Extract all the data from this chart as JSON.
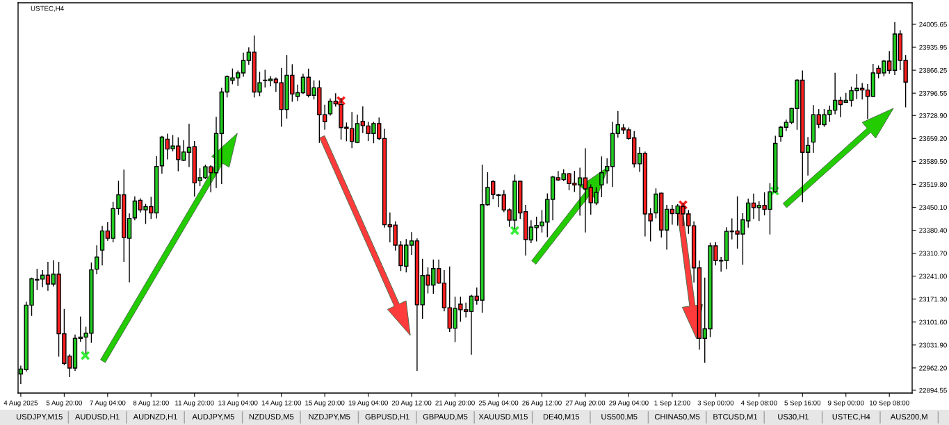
{
  "chart_data": {
    "type": "candlestick",
    "title": "USTEC,H4",
    "categories": [
      "4 Aug 2025",
      null,
      null,
      null,
      null,
      null,
      null,
      null,
      "5 Aug 20:00",
      null,
      null,
      null,
      null,
      null,
      null,
      null,
      "7 Aug 04:00",
      null,
      null,
      null,
      null,
      null,
      null,
      null,
      "8 Aug 12:00",
      null,
      null,
      null,
      null,
      null,
      null,
      null,
      "11 Aug 20:00",
      null,
      null,
      null,
      null,
      null,
      null,
      null,
      "13 Aug 04:00",
      null,
      null,
      null,
      null,
      null,
      null,
      null,
      "14 Aug 12:00",
      null,
      null,
      null,
      null,
      null,
      null,
      null,
      "15 Aug 20:00",
      null,
      null,
      null,
      null,
      null,
      null,
      null,
      "19 Aug 04:00",
      null,
      null,
      null,
      null,
      null,
      null,
      null,
      "20 Aug 12:00",
      null,
      null,
      null,
      null,
      null,
      null,
      null,
      "21 Aug 20:00",
      null,
      null,
      null,
      null,
      null,
      null,
      null,
      "25 Aug 04:00",
      null,
      null,
      null,
      null,
      null,
      null,
      null,
      "26 Aug 12:00",
      null,
      null,
      null,
      null,
      null,
      null,
      null,
      "27 Aug 20:00",
      null,
      null,
      null,
      null,
      null,
      null,
      null,
      "29 Aug 04:00",
      null,
      null,
      null,
      null,
      null,
      null,
      null,
      "1 Sep 12:00",
      null,
      null,
      null,
      null,
      null,
      null,
      null,
      "3 Sep 00:00",
      null,
      null,
      null,
      null,
      null,
      null,
      null,
      "4 Sep 08:00",
      null,
      null,
      null,
      null,
      null,
      null,
      null,
      "5 Sep 16:00",
      null,
      null,
      null,
      null,
      null,
      null,
      null,
      "9 Sep 00:00",
      null,
      null,
      null,
      null,
      null,
      null,
      null,
      "10 Sep 08:00",
      null,
      null,
      null
    ],
    "ohlc": [
      [
        22944,
        22968,
        22915,
        22959
      ],
      [
        22957,
        23162,
        22953,
        23153
      ],
      [
        23153,
        23235,
        23122,
        23233
      ],
      [
        23229,
        23262,
        23200,
        23231
      ],
      [
        23232,
        23258,
        23209,
        23244
      ],
      [
        23244,
        23283,
        23198,
        23217
      ],
      [
        23217,
        23288,
        23211,
        23247
      ],
      [
        23247,
        23283,
        22998,
        23066
      ],
      [
        23066,
        23140,
        22972,
        22976
      ],
      [
        22998,
        23002,
        22936,
        22962
      ],
      [
        22962,
        23062,
        22955,
        23052
      ],
      [
        23052,
        23117,
        23043,
        23056
      ],
      [
        23056,
        23086,
        23007,
        23068
      ],
      [
        23068,
        23281,
        23040,
        23260
      ],
      [
        23262,
        23333,
        23248,
        23299
      ],
      [
        23320,
        23392,
        23275,
        23378
      ],
      [
        23378,
        23403,
        23350,
        23356
      ],
      [
        23356,
        23465,
        23345,
        23446
      ],
      [
        23446,
        23529,
        23429,
        23488
      ],
      [
        23488,
        23563,
        23286,
        23358
      ],
      [
        23356,
        23430,
        23224,
        23416
      ],
      [
        23418,
        23482,
        23412,
        23469
      ],
      [
        23471,
        23476,
        23435,
        23442
      ],
      [
        23442,
        23459,
        23401,
        23452
      ],
      [
        23452,
        23480,
        23416,
        23433
      ],
      [
        23433,
        23604,
        23418,
        23574
      ],
      [
        23576,
        23665,
        23554,
        23663
      ],
      [
        23657,
        23672,
        23597,
        23627
      ],
      [
        23628,
        23668,
        23621,
        23636
      ],
      [
        23636,
        23661,
        23561,
        23595
      ],
      [
        23593,
        23652,
        23592,
        23618
      ],
      [
        23617,
        23702,
        23574,
        23632
      ],
      [
        23634,
        23650,
        23484,
        23524
      ],
      [
        23531,
        23567,
        23516,
        23540
      ],
      [
        23540,
        23578,
        23537,
        23573
      ],
      [
        23573,
        23576,
        23497,
        23555
      ],
      [
        23555,
        23723,
        23510,
        23674
      ],
      [
        23674,
        23811,
        23522,
        23800
      ],
      [
        23800,
        23849,
        23785,
        23847
      ],
      [
        23836,
        23870,
        23825,
        23843
      ],
      [
        23843,
        23864,
        23820,
        23858
      ],
      [
        23858,
        23918,
        23848,
        23896
      ],
      [
        23896,
        23934,
        23884,
        23921
      ],
      [
        23921,
        23970,
        23785,
        23800
      ],
      [
        23800,
        23860,
        23789,
        23828
      ],
      [
        23835,
        23866,
        23815,
        23836
      ],
      [
        23834,
        23847,
        23819,
        23839
      ],
      [
        23839,
        23843,
        23802,
        23828
      ],
      [
        23828,
        23872,
        23696,
        23747
      ],
      [
        23747,
        23911,
        23721,
        23851
      ],
      [
        23851,
        23883,
        23772,
        23794
      ],
      [
        23787,
        23821,
        23774,
        23798
      ],
      [
        23798,
        23854,
        23795,
        23845
      ],
      [
        23845,
        23870,
        23785,
        23790
      ],
      [
        23790,
        23834,
        23779,
        23813
      ],
      [
        23813,
        23834,
        23647,
        23731
      ],
      [
        23731,
        23760,
        23687,
        23710
      ],
      [
        23734,
        23779,
        23730,
        23772
      ],
      [
        23772,
        23795,
        23757,
        23764
      ],
      [
        23762,
        23781,
        23657,
        23692
      ],
      [
        23693,
        23706,
        23652,
        23689
      ],
      [
        23689,
        23738,
        23631,
        23650
      ],
      [
        23647,
        23730,
        23646,
        23704
      ],
      [
        23711,
        23755,
        23677,
        23698
      ],
      [
        23697,
        23708,
        23653,
        23674
      ],
      [
        23674,
        23708,
        23646,
        23704
      ],
      [
        23704,
        23721,
        23655,
        23659
      ],
      [
        23659,
        23687,
        23390,
        23397
      ],
      [
        23397,
        23433,
        23345,
        23391
      ],
      [
        23396,
        23406,
        23320,
        23335
      ],
      [
        23335,
        23346,
        23258,
        23273
      ],
      [
        23271,
        23352,
        23254,
        23335
      ],
      [
        23335,
        23373,
        23307,
        23348
      ],
      [
        23348,
        23354,
        22955,
        23154
      ],
      [
        23154,
        23292,
        23113,
        23243
      ],
      [
        23244,
        23266,
        23190,
        23214
      ],
      [
        23214,
        23290,
        23189,
        23264
      ],
      [
        23264,
        23290,
        23219,
        23220
      ],
      [
        23220,
        23258,
        23136,
        23145
      ],
      [
        23145,
        23269,
        23073,
        23083
      ],
      [
        23083,
        23177,
        23042,
        23143
      ],
      [
        23156,
        23177,
        23104,
        23139
      ],
      [
        23139,
        23159,
        23117,
        23134
      ],
      [
        23134,
        23183,
        23004,
        23180
      ],
      [
        23180,
        23205,
        23156,
        23168
      ],
      [
        23168,
        23578,
        23131,
        23458
      ],
      [
        23458,
        23555,
        23456,
        23510
      ],
      [
        23528,
        23531,
        23476,
        23489
      ],
      [
        23486,
        23489,
        23452,
        23488
      ],
      [
        23488,
        23500,
        23437,
        23442
      ],
      [
        23442,
        23445,
        23392,
        23411
      ],
      [
        23411,
        23548,
        23386,
        23529
      ],
      [
        23529,
        23529,
        23416,
        23433
      ],
      [
        23437,
        23456,
        23305,
        23352
      ],
      [
        23351,
        23409,
        23343,
        23390
      ],
      [
        23388,
        23420,
        23348,
        23395
      ],
      [
        23394,
        23440,
        23375,
        23405
      ],
      [
        23405,
        23491,
        23361,
        23474
      ],
      [
        23474,
        23544,
        23412,
        23542
      ],
      [
        23540,
        23559,
        23531,
        23533
      ],
      [
        23534,
        23564,
        23531,
        23552
      ],
      [
        23552,
        23553,
        23503,
        23522
      ],
      [
        23523,
        23559,
        23498,
        23518
      ],
      [
        23518,
        23569,
        23426,
        23539
      ],
      [
        23539,
        23628,
        23375,
        23506
      ],
      [
        23510,
        23518,
        23429,
        23464
      ],
      [
        23463,
        23510,
        23458,
        23495
      ],
      [
        23518,
        23603,
        23482,
        23555
      ],
      [
        23561,
        23597,
        23523,
        23574
      ],
      [
        23574,
        23708,
        23513,
        23674
      ],
      [
        23674,
        23741,
        23663,
        23701
      ],
      [
        23691,
        23701,
        23674,
        23685
      ],
      [
        23685,
        23691,
        23656,
        23659
      ],
      [
        23661,
        23680,
        23572,
        23582
      ],
      [
        23582,
        23631,
        23559,
        23614
      ],
      [
        23614,
        23618,
        23363,
        23430
      ],
      [
        23430,
        23446,
        23348,
        23409
      ],
      [
        23433,
        23506,
        23418,
        23490
      ],
      [
        23493,
        23493,
        23360,
        23381
      ],
      [
        23381,
        23456,
        23323,
        23444
      ],
      [
        23444,
        23456,
        23399,
        23431
      ],
      [
        23431,
        23458,
        23396,
        23454
      ],
      [
        23452,
        23461,
        23394,
        23430
      ],
      [
        23430,
        23440,
        23371,
        23394
      ],
      [
        23394,
        23406,
        23223,
        23266
      ],
      [
        23266,
        23287,
        23019,
        23052
      ],
      [
        23052,
        23235,
        22979,
        23081
      ],
      [
        23081,
        23341,
        23057,
        23333
      ],
      [
        23333,
        23343,
        23275,
        23288
      ],
      [
        23287,
        23298,
        23256,
        23289
      ],
      [
        23288,
        23388,
        23264,
        23377
      ],
      [
        23376,
        23415,
        23354,
        23378
      ],
      [
        23378,
        23482,
        23326,
        23369
      ],
      [
        23369,
        23431,
        23277,
        23412
      ],
      [
        23409,
        23475,
        23390,
        23463
      ],
      [
        23463,
        23490,
        23416,
        23449
      ],
      [
        23449,
        23467,
        23410,
        23456
      ],
      [
        23456,
        23494,
        23427,
        23444
      ],
      [
        23444,
        23522,
        23369,
        23497
      ],
      [
        23497,
        23666,
        23495,
        23644
      ],
      [
        23665,
        23696,
        23651,
        23693
      ],
      [
        23693,
        23715,
        23683,
        23708
      ],
      [
        23708,
        23751,
        23704,
        23750
      ],
      [
        23750,
        23838,
        23687,
        23836
      ],
      [
        23836,
        23864,
        23467,
        23617
      ],
      [
        23617,
        23662,
        23548,
        23638
      ],
      [
        23648,
        23759,
        23617,
        23731
      ],
      [
        23731,
        23747,
        23692,
        23702
      ],
      [
        23701,
        23747,
        23696,
        23731
      ],
      [
        23732,
        23757,
        23711,
        23745
      ],
      [
        23745,
        23857,
        23734,
        23775
      ],
      [
        23775,
        23784,
        23725,
        23762
      ],
      [
        23769,
        23796,
        23769,
        23775
      ],
      [
        23775,
        23815,
        23757,
        23804
      ],
      [
        23804,
        23853,
        23780,
        23811
      ],
      [
        23811,
        23826,
        23779,
        23806
      ],
      [
        23806,
        23823,
        23720,
        23787
      ],
      [
        23787,
        23884,
        23787,
        23858
      ],
      [
        23872,
        23879,
        23843,
        23857
      ],
      [
        23858,
        23896,
        23849,
        23894
      ],
      [
        23894,
        23923,
        23857,
        23866
      ],
      [
        23866,
        24011,
        23853,
        23976
      ],
      [
        23976,
        23986,
        23868,
        23896
      ],
      [
        23896,
        23911,
        23755,
        23830
      ]
    ],
    "colors": [
      "#22cc22",
      "#22cc22",
      "#22cc22",
      "#22cc22",
      "#22cc22",
      "#ff2020",
      "#22cc22",
      "#ff2020",
      "#ff2020",
      "#ff2020",
      "#22cc22",
      "#22cc22",
      "#22cc22",
      "#22cc22",
      "#22cc22",
      "#22cc22",
      "#ff2020",
      "#22cc22",
      "#22cc22",
      "#ff2020",
      "#22cc22",
      "#22cc22",
      "#ff2020",
      "#22cc22",
      "#ff2020",
      "#22cc22",
      "#22cc22",
      "#ff2020",
      "#22cc22",
      "#ff2020",
      "#22cc22",
      "#22cc22",
      "#ff2020",
      "#22cc22",
      "#22cc22",
      "#ff2020",
      "#22cc22",
      "#22cc22",
      "#22cc22",
      "#22cc22",
      "#22cc22",
      "#22cc22",
      "#22cc22",
      "#ff2020",
      "#22cc22",
      "#22cc22",
      "#22cc22",
      "#ff2020",
      "#ff2020",
      "#22cc22",
      "#ff2020",
      "#22cc22",
      "#22cc22",
      "#ff2020",
      "#22cc22",
      "#ff2020",
      "#ff2020",
      "#22cc22",
      "#ff2020",
      "#ff2020",
      "#ff2020",
      "#ff2020",
      "#22cc22",
      "#ff2020",
      "#ff2020",
      "#22cc22",
      "#ff2020",
      "#ff2020",
      "#ff2020",
      "#ff2020",
      "#ff2020",
      "#22cc22",
      "#22cc22",
      "#ff2020",
      "#22cc22",
      "#ff2020",
      "#22cc22",
      "#ff2020",
      "#ff2020",
      "#ff2020",
      "#22cc22",
      "#ff2020",
      "#ff2020",
      "#22cc22",
      "#ff2020",
      "#22cc22",
      "#22cc22",
      "#ff2020",
      "#22cc22",
      "#ff2020",
      "#ff2020",
      "#22cc22",
      "#ff2020",
      "#ff2020",
      "#22cc22",
      "#22cc22",
      "#22cc22",
      "#22cc22",
      "#22cc22",
      "#ff2020",
      "#22cc22",
      "#ff2020",
      "#ff2020",
      "#22cc22",
      "#ff2020",
      "#ff2020",
      "#22cc22",
      "#22cc22",
      "#22cc22",
      "#22cc22",
      "#22cc22",
      "#ff2020",
      "#ff2020",
      "#ff2020",
      "#22cc22",
      "#ff2020",
      "#ff2020",
      "#22cc22",
      "#ff2020",
      "#22cc22",
      "#ff2020",
      "#22cc22",
      "#ff2020",
      "#ff2020",
      "#ff2020",
      "#ff2020",
      "#22cc22",
      "#22cc22",
      "#ff2020",
      "#22cc22",
      "#22cc22",
      "#22cc22",
      "#ff2020",
      "#22cc22",
      "#22cc22",
      "#ff2020",
      "#22cc22",
      "#ff2020",
      "#22cc22",
      "#22cc22",
      "#22cc22",
      "#22cc22",
      "#22cc22",
      "#22cc22",
      "#ff2020",
      "#22cc22",
      "#22cc22",
      "#ff2020",
      "#22cc22",
      "#22cc22",
      "#22cc22",
      "#ff2020",
      "#22cc22",
      "#22cc22",
      "#22cc22",
      "#ff2020",
      "#ff2020",
      "#22cc22",
      "#ff2020",
      "#22cc22",
      "#ff2020",
      "#22cc22",
      "#ff2020",
      "#ff2020"
    ],
    "ylim": [
      22886,
      24071
    ],
    "yticks": [
      {
        "value": 24005.65,
        "label": "24005.65"
      },
      {
        "value": 23935.95,
        "label": "23935.95"
      },
      {
        "value": 23866.25,
        "label": "23866.25"
      },
      {
        "value": 23796.55,
        "label": "23796.55"
      },
      {
        "value": 23728.9,
        "label": "23728.90"
      },
      {
        "value": 23659.2,
        "label": "23659.20"
      },
      {
        "value": 23589.5,
        "label": "23589.50"
      },
      {
        "value": 23519.8,
        "label": "23519.80"
      },
      {
        "value": 23450.1,
        "label": "23450.10"
      },
      {
        "value": 23380.4,
        "label": "23380.40"
      },
      {
        "value": 23310.7,
        "label": "23310.70"
      },
      {
        "value": 23241.0,
        "label": "23241.00"
      },
      {
        "value": 23171.3,
        "label": "23171.30"
      },
      {
        "value": 23101.6,
        "label": "23101.60"
      },
      {
        "value": 23031.9,
        "label": "23031.90"
      },
      {
        "value": 22962.2,
        "label": "22962.20"
      },
      {
        "value": 22894.55,
        "label": "22894.55"
      }
    ],
    "annotations": [
      "USDJPY,M15",
      "AUDUSD,H1",
      "AUDNZD,H1",
      "AUDJPY,M5",
      "NZDUSD,M5",
      "NZDJPY,M5",
      "GBPUSD,H1",
      "GBPAUD,M5",
      "XAUUSD,M15",
      "DE40,M15",
      "US500,M5",
      "CHINA50,M5",
      "BTCUSD,M1",
      "US30,H1",
      "USTEC,H4",
      "AUS200,M"
    ]
  }
}
